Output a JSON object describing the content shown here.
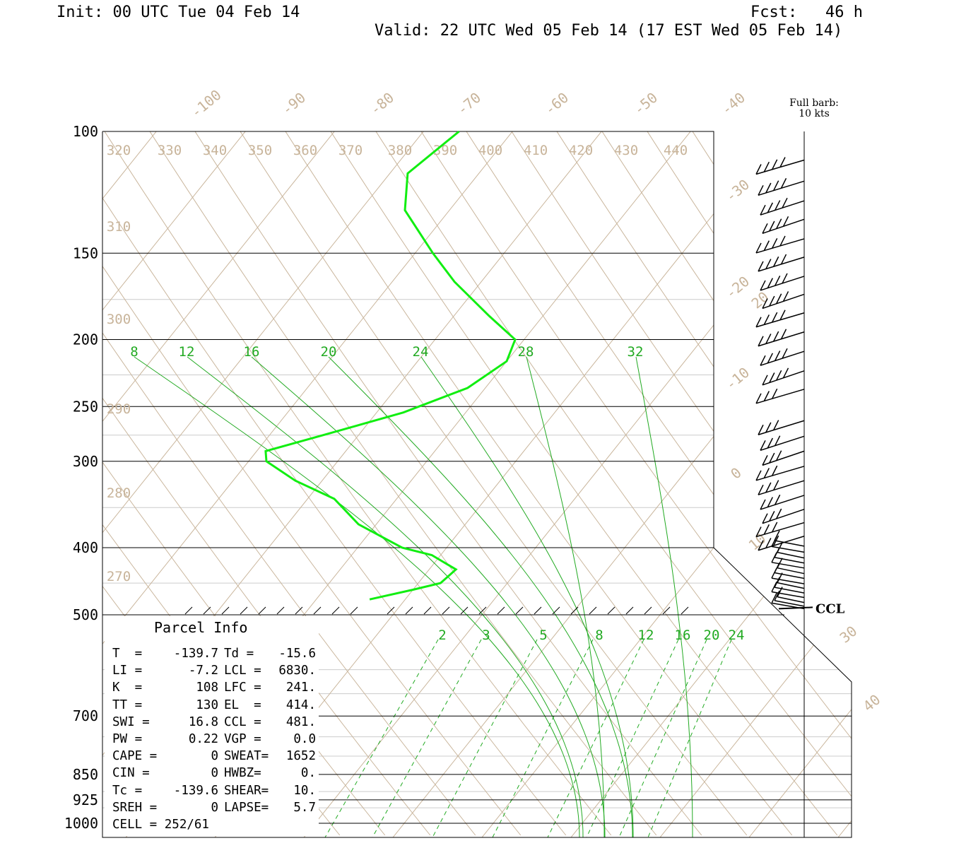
{
  "header": {
    "init": "Init: 00 UTC Tue 04 Feb 14",
    "fcst": "Fcst:   46 h",
    "valid": "Valid: 22 UTC Wed 05 Feb 14 (17 EST Wed 05 Feb 14)"
  },
  "barb_note": {
    "line1": "Full barb:",
    "line2": "10 kts"
  },
  "parcel": {
    "title": "Parcel Info",
    "rows": [
      {
        "k1": "T  =",
        "v1": "-139.7",
        "k2": "Td =",
        "v2": "-15.6"
      },
      {
        "k1": "LI =",
        "v1": "-7.2",
        "k2": "LCL =",
        "v2": "6830."
      },
      {
        "k1": "K  =",
        "v1": "108",
        "k2": "LFC =",
        "v2": "241."
      },
      {
        "k1": "TT =",
        "v1": "130",
        "k2": "EL  =",
        "v2": "414."
      },
      {
        "k1": "SWI =",
        "v1": "16.8",
        "k2": "CCL =",
        "v2": "481."
      },
      {
        "k1": "PW =",
        "v1": "0.22",
        "k2": "VGP =",
        "v2": "0.0"
      },
      {
        "k1": "CAPE =",
        "v1": "0",
        "k2": "SWEAT=",
        "v2": "1652"
      },
      {
        "k1": "CIN =",
        "v1": "0",
        "k2": "HWBZ=",
        "v2": "0."
      },
      {
        "k1": "Tc =",
        "v1": "-139.6",
        "k2": "SHEAR=",
        "v2": "10."
      },
      {
        "k1": "SREH =",
        "v1": "0",
        "k2": "LAPSE=",
        "v2": "5.7"
      },
      {
        "k1": "CELL = 252/61",
        "v1": "",
        "k2": "",
        "v2": ""
      }
    ]
  },
  "colors": {
    "sounding": "#11ee11",
    "moist": "#22aa22",
    "dry": "#c8b49a",
    "axis": "#000000",
    "isobar_minor": "#cccccc"
  },
  "chart_data": {
    "type": "skew-T sounding",
    "pressure_levels": [
      100,
      150,
      200,
      250,
      300,
      400,
      500,
      700,
      850,
      925,
      1000
    ],
    "isotherm_labels": [
      "-100",
      "-90",
      "-80",
      "-70",
      "-60",
      "-50",
      "-40",
      "-30",
      "-20",
      "-10",
      "0",
      "10",
      "20",
      "30",
      "40"
    ],
    "theta_labels": [
      "320",
      "330",
      "340",
      "350",
      "360",
      "370",
      "380",
      "390",
      "400",
      "410",
      "420",
      "430",
      "440",
      "310",
      "300",
      "290",
      "280",
      "270"
    ],
    "moist_adiabat_labels": [
      "8",
      "12",
      "16",
      "20",
      "24",
      "28",
      "32"
    ],
    "mixing_ratio_labels": [
      "2",
      "3",
      "5",
      "8",
      "12",
      "16",
      "20",
      "24"
    ],
    "sounding_label": "CCL",
    "temperature_profile": [
      {
        "p": 475,
        "t": -24
      },
      {
        "p": 460,
        "t": -20
      },
      {
        "p": 450,
        "t": -17.5
      },
      {
        "p": 430,
        "t": -17
      },
      {
        "p": 410,
        "t": -21
      },
      {
        "p": 400,
        "t": -25
      },
      {
        "p": 370,
        "t": -32
      },
      {
        "p": 340,
        "t": -37
      },
      {
        "p": 320,
        "t": -43
      },
      {
        "p": 300,
        "t": -48
      },
      {
        "p": 290,
        "t": -49
      },
      {
        "p": 275,
        "t": -44
      },
      {
        "p": 255,
        "t": -37
      },
      {
        "p": 235,
        "t": -32
      },
      {
        "p": 215,
        "t": -30
      },
      {
        "p": 200,
        "t": -31
      },
      {
        "p": 185,
        "t": -36
      },
      {
        "p": 165,
        "t": -43
      },
      {
        "p": 150,
        "t": -48
      },
      {
        "p": 130,
        "t": -55
      },
      {
        "p": 115,
        "t": -58
      },
      {
        "p": 100,
        "t": -56
      }
    ],
    "wind_levels": [
      110,
      118,
      126,
      134,
      143,
      152,
      162,
      172,
      183,
      195,
      208,
      222,
      236,
      262,
      276,
      290,
      305,
      320,
      336,
      352,
      368,
      385,
      398,
      406,
      414,
      421,
      428,
      436,
      443,
      451,
      458,
      465,
      472,
      480,
      486,
      490
    ]
  }
}
